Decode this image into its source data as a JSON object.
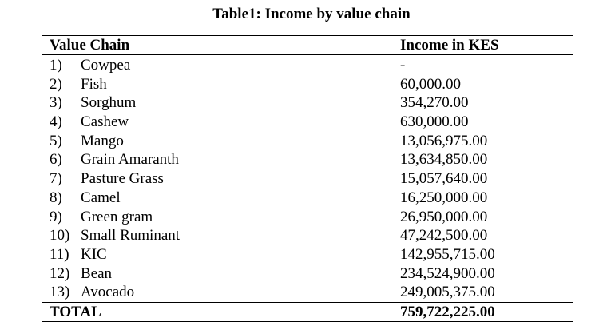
{
  "caption": "Table1: Income by value chain",
  "headers": {
    "value_chain": "Value Chain",
    "income": "Income in KES"
  },
  "rows": [
    {
      "num": "1)",
      "name": "Cowpea",
      "income": "-"
    },
    {
      "num": "2)",
      "name": "Fish",
      "income": "60,000.00"
    },
    {
      "num": "3)",
      "name": "Sorghum",
      "income": "354,270.00"
    },
    {
      "num": "4)",
      "name": "Cashew",
      "income": "630,000.00"
    },
    {
      "num": "5)",
      "name": "Mango",
      "income": "13,056,975.00"
    },
    {
      "num": "6)",
      "name": "Grain Amaranth",
      "income": "13,634,850.00"
    },
    {
      "num": "7)",
      "name": "Pasture Grass",
      "income": "15,057,640.00"
    },
    {
      "num": "8)",
      "name": "Camel",
      "income": "16,250,000.00"
    },
    {
      "num": "9)",
      "name": "Green gram",
      "income": "26,950,000.00"
    },
    {
      "num": "10)",
      "name": "Small Ruminant",
      "income": "47,242,500.00"
    },
    {
      "num": "11)",
      "name": "KIC",
      "income": "142,955,715.00"
    },
    {
      "num": "12)",
      "name": "Bean",
      "income": "234,524,900.00"
    },
    {
      "num": "13)",
      "name": "Avocado",
      "income": "249,005,375.00"
    }
  ],
  "total": {
    "label": "TOTAL",
    "value": "759,722,225.00"
  }
}
